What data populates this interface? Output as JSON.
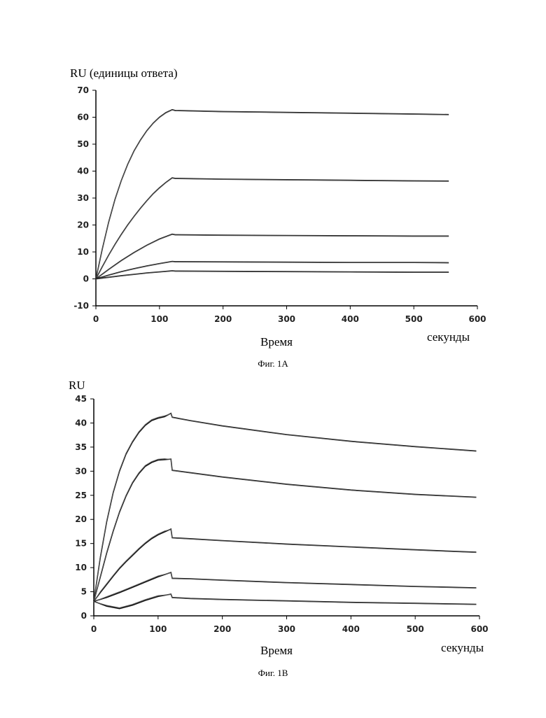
{
  "figures": [
    {
      "caption": "Фиг. 1А"
    },
    {
      "caption": "Фиг. 1В"
    }
  ],
  "chart_data": [
    {
      "type": "line",
      "ylabel": "RU (единицы ответа)",
      "xlabel": "Время",
      "xunit": "секунды",
      "xlim": [
        0,
        600
      ],
      "ylim": [
        -10,
        70
      ],
      "xticks": [
        0,
        100,
        200,
        300,
        400,
        500,
        600
      ],
      "yticks": [
        -10,
        0,
        10,
        20,
        30,
        40,
        50,
        60,
        70
      ],
      "injection_end": 120,
      "series": [
        {
          "x": [
            0,
            10,
            20,
            30,
            40,
            50,
            60,
            70,
            80,
            90,
            100,
            110,
            120,
            125,
            200,
            300,
            400,
            500,
            555
          ],
          "values": [
            0,
            11,
            21,
            29.5,
            36.5,
            42.5,
            47.5,
            51.5,
            55,
            57.8,
            60,
            61.7,
            62.8,
            62.5,
            62.1,
            61.8,
            61.5,
            61.2,
            61
          ]
        },
        {
          "x": [
            0,
            10,
            20,
            30,
            40,
            50,
            60,
            70,
            80,
            90,
            100,
            110,
            120,
            125,
            200,
            300,
            400,
            500,
            555
          ],
          "values": [
            0,
            4.5,
            8.8,
            12.8,
            16.5,
            20,
            23.2,
            26.2,
            29,
            31.6,
            33.8,
            35.8,
            37.5,
            37.3,
            37,
            36.8,
            36.6,
            36.4,
            36.3
          ]
        },
        {
          "x": [
            0,
            20,
            40,
            60,
            80,
            100,
            120,
            125,
            200,
            300,
            400,
            500,
            555
          ],
          "values": [
            0,
            3.5,
            6.8,
            9.8,
            12.5,
            14.8,
            16.6,
            16.4,
            16.2,
            16.1,
            16,
            15.9,
            15.9
          ]
        },
        {
          "x": [
            0,
            20,
            40,
            60,
            80,
            100,
            120,
            125,
            200,
            300,
            400,
            500,
            555
          ],
          "values": [
            0,
            1.4,
            2.7,
            3.8,
            4.8,
            5.7,
            6.5,
            6.4,
            6.3,
            6.2,
            6.1,
            6.1,
            6
          ]
        },
        {
          "x": [
            0,
            20,
            40,
            60,
            80,
            100,
            120,
            125,
            200,
            300,
            400,
            500,
            555
          ],
          "values": [
            0,
            0.6,
            1.2,
            1.7,
            2.2,
            2.6,
            3,
            2.9,
            2.8,
            2.7,
            2.6,
            2.5,
            2.5
          ]
        }
      ]
    },
    {
      "type": "line",
      "ylabel": "RU",
      "xlabel": "Время",
      "xunit": "секунды",
      "xlim": [
        0,
        600
      ],
      "ylim": [
        0,
        45
      ],
      "xticks": [
        0,
        100,
        200,
        300,
        400,
        500,
        600
      ],
      "yticks": [
        0,
        5,
        10,
        15,
        20,
        25,
        30,
        35,
        40,
        45
      ],
      "injection_end": 120,
      "series": [
        {
          "x": [
            0,
            10,
            20,
            30,
            40,
            50,
            60,
            70,
            80,
            90,
            100,
            110,
            120,
            122,
            150,
            200,
            300,
            400,
            500,
            595
          ],
          "values": [
            3,
            12,
            19.5,
            25.5,
            30,
            33.5,
            36,
            38,
            39.5,
            40.5,
            41,
            41.3,
            42,
            41.2,
            40.5,
            39.4,
            37.6,
            36.2,
            35.1,
            34.2
          ]
        },
        {
          "x": [
            0,
            10,
            20,
            30,
            40,
            50,
            60,
            70,
            80,
            90,
            100,
            110,
            120,
            122,
            150,
            200,
            300,
            400,
            500,
            595
          ],
          "values": [
            3,
            8,
            13,
            17.5,
            21.5,
            24.8,
            27.5,
            29.5,
            31,
            31.8,
            32.3,
            32.4,
            32.5,
            30.2,
            29.7,
            28.8,
            27.3,
            26.1,
            25.2,
            24.6
          ]
        },
        {
          "x": [
            0,
            10,
            20,
            30,
            40,
            50,
            60,
            70,
            80,
            90,
            100,
            110,
            120,
            122,
            150,
            200,
            300,
            400,
            500,
            595
          ],
          "values": [
            3,
            4.8,
            6.5,
            8.2,
            9.8,
            11.2,
            12.5,
            13.8,
            15,
            16,
            16.8,
            17.4,
            18,
            16.2,
            16,
            15.6,
            14.9,
            14.3,
            13.7,
            13.2
          ]
        },
        {
          "x": [
            0,
            20,
            40,
            60,
            80,
            100,
            120,
            122,
            150,
            200,
            300,
            400,
            500,
            595
          ],
          "values": [
            3,
            3.8,
            4.8,
            5.9,
            7,
            8.1,
            9,
            7.8,
            7.7,
            7.4,
            6.9,
            6.5,
            6.1,
            5.8
          ]
        },
        {
          "x": [
            0,
            20,
            40,
            60,
            80,
            100,
            120,
            122,
            150,
            200,
            300,
            400,
            500,
            595
          ],
          "values": [
            3,
            2,
            1.5,
            2.2,
            3.2,
            4,
            4.5,
            3.8,
            3.6,
            3.4,
            3.1,
            2.8,
            2.6,
            2.4
          ]
        }
      ]
    }
  ]
}
